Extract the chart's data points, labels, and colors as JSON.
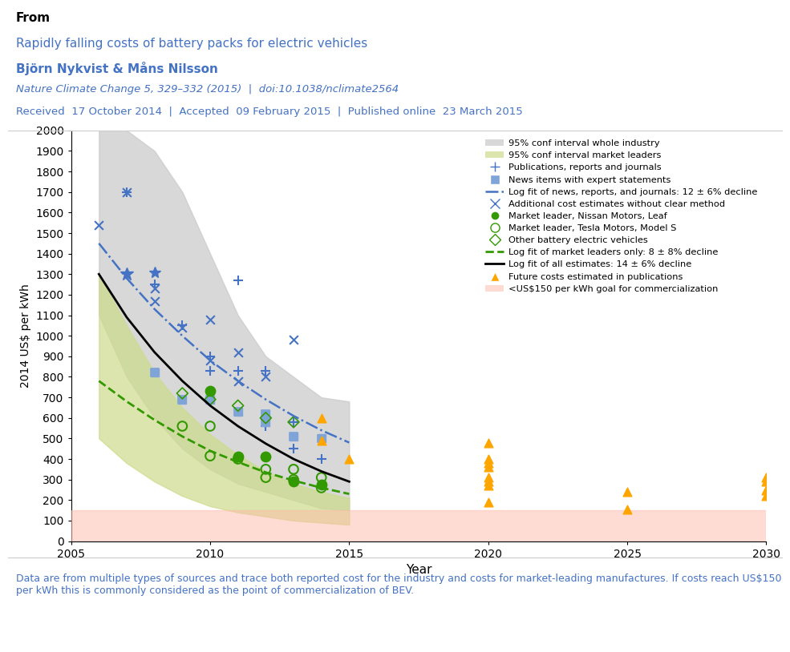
{
  "title_from": "From",
  "title_paper": "Rapidly falling costs of battery packs for electric vehicles",
  "title_authors": "Björn Nykvist & Måns Nilsson",
  "title_journal": "Nature Climate Change 5, 329–332 (2015)  |  doi:10.1038/nclimate2564",
  "title_dates": "Received  17 October 2014  |  Accepted  09 February 2015  |  Published online  23 March 2015",
  "footer": "Data are from multiple types of sources and trace both reported cost for the industry and costs for market-leading manufactures. If costs reach US$150 per kWh this is commonly considered as the point of commercialization of BEV.",
  "ylabel": "2014 US$ per kWh",
  "xlabel": "Year",
  "xlim": [
    2005,
    2030
  ],
  "ylim": [
    0,
    2000
  ],
  "yticks": [
    0,
    100,
    200,
    300,
    400,
    500,
    600,
    700,
    800,
    900,
    1000,
    1100,
    1200,
    1300,
    1400,
    1500,
    1600,
    1700,
    1800,
    1900,
    2000
  ],
  "xticks": [
    2005,
    2010,
    2015,
    2020,
    2025,
    2030
  ],
  "commercialization_y": 150,
  "publications_plus": {
    "x": [
      2007,
      2008,
      2009,
      2010,
      2010,
      2011,
      2011,
      2012,
      2012,
      2013,
      2013,
      2014
    ],
    "y": [
      1700,
      1250,
      1050,
      900,
      830,
      830,
      1270,
      560,
      830,
      580,
      450,
      400
    ]
  },
  "news_squares": {
    "x": [
      2008,
      2009,
      2010,
      2011,
      2012,
      2012,
      2013,
      2014
    ],
    "y": [
      820,
      690,
      690,
      630,
      620,
      580,
      510,
      500
    ]
  },
  "additional_cost_x": {
    "x": [
      2006,
      2007,
      2008,
      2008,
      2009,
      2010,
      2010,
      2011,
      2011,
      2012,
      2013
    ],
    "y": [
      1540,
      1700,
      1230,
      1170,
      1040,
      1080,
      880,
      920,
      780,
      800,
      980
    ]
  },
  "nissan_leaf": {
    "x": [
      2010,
      2011,
      2012,
      2013,
      2014
    ],
    "y": [
      730,
      410,
      410,
      290,
      275
    ]
  },
  "tesla_model_s": {
    "x": [
      2009,
      2010,
      2010,
      2011,
      2012,
      2012,
      2013,
      2013,
      2014,
      2014
    ],
    "y": [
      560,
      560,
      415,
      400,
      350,
      310,
      350,
      300,
      310,
      260
    ]
  },
  "other_bev": {
    "x": [
      2009,
      2010,
      2011,
      2012,
      2013
    ],
    "y": [
      720,
      690,
      660,
      600,
      580
    ]
  },
  "future_costs": {
    "x": [
      2014,
      2014,
      2015,
      2020,
      2020,
      2020,
      2020,
      2020,
      2020,
      2020,
      2020,
      2025,
      2025,
      2030,
      2030,
      2030,
      2030
    ],
    "y": [
      600,
      490,
      400,
      480,
      400,
      380,
      360,
      310,
      290,
      270,
      190,
      240,
      155,
      310,
      290,
      250,
      220
    ]
  },
  "log_fit_all_x": [
    2006,
    2007,
    2008,
    2009,
    2010,
    2011,
    2012,
    2013,
    2014,
    2015
  ],
  "log_fit_all_y": [
    1300,
    1090,
    920,
    780,
    660,
    560,
    475,
    400,
    340,
    290
  ],
  "log_fit_news_x": [
    2006,
    2007,
    2008,
    2009,
    2010,
    2011,
    2012,
    2013,
    2014,
    2015
  ],
  "log_fit_news_y": [
    1450,
    1280,
    1130,
    1000,
    880,
    780,
    690,
    610,
    540,
    480
  ],
  "log_fit_market_x": [
    2006,
    2007,
    2008,
    2009,
    2010,
    2011,
    2012,
    2013,
    2014,
    2015
  ],
  "log_fit_market_y": [
    780,
    680,
    590,
    510,
    440,
    385,
    335,
    295,
    260,
    230
  ],
  "ci_industry_upper": [
    2000,
    2000,
    1900,
    1700,
    1400,
    1100,
    900,
    800,
    700,
    680
  ],
  "ci_industry_lower": [
    1100,
    800,
    600,
    450,
    350,
    280,
    240,
    200,
    160,
    150
  ],
  "ci_market_upper": [
    1300,
    1050,
    820,
    650,
    520,
    420,
    340,
    280,
    240,
    210
  ],
  "ci_market_lower": [
    500,
    380,
    290,
    220,
    170,
    140,
    120,
    100,
    90,
    80
  ],
  "shade_x": [
    2006,
    2007,
    2008,
    2009,
    2010,
    2011,
    2012,
    2013,
    2014,
    2015
  ],
  "color_blue": "#4472C4",
  "color_blue_light": "#7FA4D8",
  "color_green": "#339900",
  "color_orange": "#FFA500",
  "color_gray_shade": "#C0C0C0",
  "color_green_shade": "#C8D89A",
  "color_pink_shade": "#FFCCBB",
  "background_color": "#FFFFFF"
}
